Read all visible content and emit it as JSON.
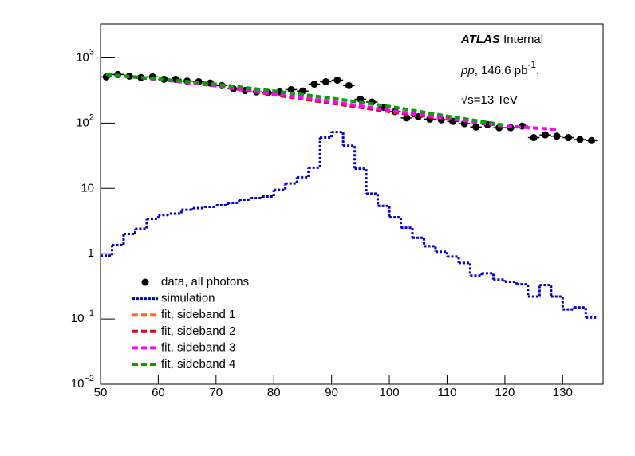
{
  "chart_data": {
    "type": "line",
    "log_y": true,
    "legend": "lower left",
    "xlim": [
      50,
      137
    ],
    "ylim": [
      0.01,
      3300
    ],
    "xticks": [
      50,
      60,
      70,
      80,
      90,
      100,
      110,
      120,
      130
    ],
    "yticks": [
      {
        "value": 0.01,
        "label": "10",
        "sup": "−2"
      },
      {
        "value": 0.1,
        "label": "10",
        "sup": "−1"
      },
      1,
      10,
      {
        "value": 100,
        "label": "10",
        "sup": "2"
      },
      {
        "value": 1000,
        "label": "10",
        "sup": "3"
      }
    ],
    "annotations": [
      [
        "ATLAS",
        "Internal"
      ],
      [
        "pp",
        ", 146.6 pb",
        "-1",
        ","
      ],
      [
        "√s=13 TeV"
      ]
    ],
    "series": [
      {
        "name": "data, all photons",
        "color": "#000000",
        "kind": "points",
        "xerr": 1,
        "x": [
          51,
          53,
          55,
          57,
          59,
          61,
          63,
          65,
          67,
          69,
          71,
          73,
          75,
          77,
          79,
          81,
          83,
          85,
          87,
          89,
          91,
          93,
          95,
          97,
          99,
          101,
          103,
          105,
          107,
          109,
          111,
          113,
          115,
          117,
          119,
          121,
          123,
          125,
          127,
          129,
          131,
          133,
          135
        ],
        "values": [
          510,
          555,
          525,
          500,
          510,
          470,
          470,
          440,
          430,
          410,
          375,
          335,
          315,
          300,
          290,
          300,
          325,
          310,
          395,
          430,
          455,
          375,
          232,
          210,
          175,
          150,
          120,
          125,
          115,
          112,
          106,
          98,
          87,
          95,
          85,
          85,
          90,
          60,
          66,
          63,
          60,
          56,
          54
        ]
      },
      {
        "name": "simulation",
        "color": "#0000cc",
        "kind": "hist",
        "bins": [
          50,
          52,
          54,
          56,
          58,
          60,
          62,
          64,
          66,
          68,
          70,
          72,
          74,
          76,
          78,
          80,
          82,
          84,
          86,
          88,
          90,
          92,
          94,
          96,
          98,
          100,
          102,
          104,
          106,
          108,
          110,
          112,
          114,
          116,
          118,
          120,
          122,
          124,
          126,
          128,
          130,
          132,
          134,
          136
        ],
        "values": [
          0.93,
          1.35,
          2.0,
          2.4,
          3.4,
          3.9,
          4.1,
          4.7,
          5.0,
          5.2,
          5.5,
          6.0,
          6.7,
          7.1,
          7.5,
          9.5,
          11.9,
          14.8,
          20.7,
          60,
          73,
          45,
          20,
          8.3,
          5.4,
          3.6,
          2.5,
          1.75,
          1.3,
          1.07,
          0.9,
          0.72,
          0.46,
          0.5,
          0.4,
          0.37,
          0.34,
          0.22,
          0.33,
          0.22,
          0.14,
          0.15,
          0.105
        ]
      },
      {
        "name": "fit, sideband 1",
        "color": "#ff6a3d",
        "kind": "dashed",
        "x": [
          51,
          60,
          70,
          80,
          90,
          100,
          105
        ],
        "values": [
          555,
          470,
          375,
          275,
          205,
          150,
          130
        ]
      },
      {
        "name": "fit, sideband 2",
        "color": "#e0001a",
        "kind": "dashed",
        "x": [
          51,
          60,
          70,
          80,
          90,
          100,
          108
        ],
        "values": [
          555,
          470,
          372,
          272,
          202,
          150,
          122
        ]
      },
      {
        "name": "fit, sideband 3",
        "color": "#ff00ff",
        "kind": "dashed",
        "x": [
          51,
          60,
          70,
          80,
          90,
          100,
          110,
          120,
          129
        ],
        "values": [
          555,
          470,
          375,
          280,
          213,
          157,
          118,
          90,
          80
        ]
      },
      {
        "name": "fit, sideband 4",
        "color": "#00a000",
        "kind": "dashed",
        "x": [
          51,
          60,
          70,
          80,
          90,
          100,
          110,
          120
        ],
        "values": [
          555,
          475,
          395,
          310,
          240,
          180,
          128,
          93
        ]
      }
    ]
  }
}
